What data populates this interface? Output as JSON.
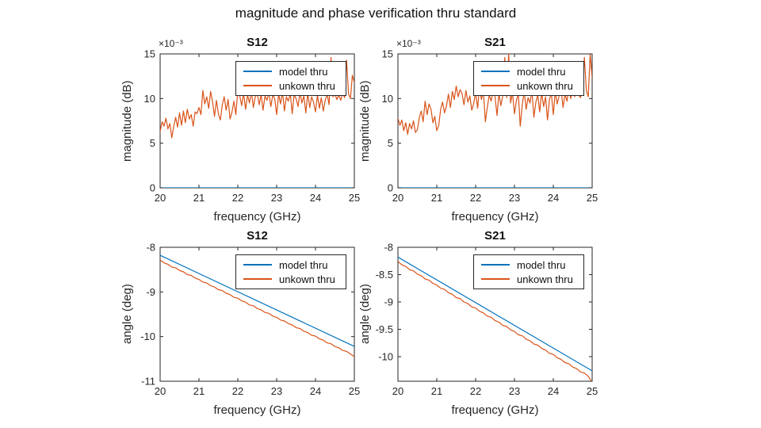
{
  "figure_title": "magnitude and phase verification thru standard",
  "colors": {
    "model": "#0072BD",
    "unknown": "#D95319",
    "axis": "#262626"
  },
  "chart_data": [
    {
      "type": "line",
      "title": "S12",
      "xlabel": "frequency (GHz)",
      "ylabel": "magnitude (dB)",
      "y_multiplier": "×10⁻³",
      "xlim": [
        20,
        25
      ],
      "ylim": [
        0,
        15
      ],
      "xticks": [
        20,
        21,
        22,
        23,
        24,
        25
      ],
      "yticks": [
        0,
        5,
        10,
        15
      ],
      "legend_position": "top-right",
      "series": [
        {
          "name": "model thru",
          "color": "#0072BD",
          "y_const": 0
        },
        {
          "name": "unkown thru",
          "color": "#D95319",
          "y": [
            6.3,
            7.4,
            6.9,
            7.8,
            6.6,
            7.2,
            5.6,
            6.9,
            7.9,
            6.8,
            8.4,
            7.0,
            8.6,
            7.3,
            8.8,
            7.7,
            8.2,
            6.9,
            8.5,
            8.3,
            9.0,
            8.2,
            10.9,
            9.4,
            10.2,
            8.9,
            10.8,
            9.6,
            8.0,
            9.8,
            8.3,
            7.6,
            9.3,
            10.2,
            8.7,
            9.9,
            7.7,
            8.5,
            9.7,
            8.2,
            10.9,
            10.3,
            9.2,
            10.6,
            8.8,
            10.4,
            9.5,
            10.8,
            9.0,
            10.2,
            10.6,
            9.3,
            10.5,
            8.7,
            10.3,
            9.8,
            10.7,
            9.1,
            10.4,
            10.0,
            8.2,
            10.5,
            9.4,
            10.8,
            8.6,
            10.2,
            9.7,
            10.6,
            8.3,
            10.4,
            10.0,
            9.1,
            10.7,
            9.5,
            10.3,
            8.4,
            10.6,
            9.0,
            10.2,
            9.6,
            8.5,
            10.4,
            8.9,
            10.1,
            8.6,
            9.8,
            10.5,
            9.3,
            14.6,
            10.2,
            10.5,
            9.9,
            10.4,
            9.8,
            10.6,
            10.1,
            14.3,
            10.5,
            10.0,
            12.6,
            11.8
          ]
        }
      ]
    },
    {
      "type": "line",
      "title": "S21",
      "xlabel": "frequency (GHz)",
      "ylabel": "magnitude (dB)",
      "y_multiplier": "×10⁻³",
      "xlim": [
        20,
        25
      ],
      "ylim": [
        0,
        15
      ],
      "xticks": [
        20,
        21,
        22,
        23,
        24,
        25
      ],
      "yticks": [
        0,
        5,
        10,
        15
      ],
      "legend_position": "top-right",
      "series": [
        {
          "name": "model thru",
          "color": "#0072BD",
          "y_const": 0
        },
        {
          "name": "unkown thru",
          "color": "#D95319",
          "y": [
            7.8,
            7.0,
            7.6,
            6.4,
            7.3,
            6.0,
            7.2,
            6.6,
            7.5,
            6.2,
            6.5,
            7.9,
            8.6,
            7.4,
            9.7,
            8.2,
            9.4,
            8.8,
            7.3,
            8.0,
            6.4,
            7.0,
            8.8,
            9.6,
            8.4,
            9.2,
            10.5,
            9.0,
            10.8,
            9.9,
            11.4,
            10.2,
            11.0,
            10.6,
            9.3,
            10.9,
            9.6,
            10.3,
            8.7,
            9.4,
            10.7,
            8.9,
            11.3,
            9.9,
            10.8,
            7.4,
            9.0,
            10.4,
            9.7,
            10.9,
            10.2,
            8.1,
            10.6,
            9.2,
            10.3,
            14.6,
            10.1,
            15.0,
            9.5,
            10.7,
            8.3,
            9.8,
            10.5,
            6.9,
            9.3,
            10.8,
            8.8,
            10.1,
            9.5,
            10.9,
            7.9,
            9.6,
            10.4,
            8.5,
            10.7,
            9.1,
            10.2,
            7.6,
            9.9,
            10.6,
            8.2,
            10.8,
            9.4,
            10.3,
            11.0,
            9.0,
            10.5,
            9.7,
            11.2,
            10.0,
            10.9,
            10.2,
            11.8,
            10.4,
            10.1,
            11.0,
            14.6,
            10.9,
            10.2,
            15.0,
            12.3
          ]
        }
      ]
    },
    {
      "type": "line",
      "title": "S12",
      "xlabel": "frequency (GHz)",
      "ylabel": "angle (deg)",
      "y_multiplier": "",
      "xlim": [
        20,
        25
      ],
      "ylim": [
        -11,
        -8
      ],
      "xticks": [
        20,
        21,
        22,
        23,
        24,
        25
      ],
      "yticks": [
        -8,
        -9,
        -10,
        -11
      ],
      "legend_position": "top-right",
      "series": [
        {
          "name": "model thru",
          "color": "#0072BD",
          "y": [
            -8.18,
            -10.22
          ]
        },
        {
          "name": "unkown thru",
          "color": "#D95319",
          "y": [
            -8.28,
            -8.35,
            -8.38,
            -8.44,
            -8.46,
            -8.52,
            -8.55,
            -8.61,
            -8.63,
            -8.69,
            -8.72,
            -8.78,
            -8.8,
            -8.86,
            -8.89,
            -8.95,
            -8.97,
            -9.03,
            -9.06,
            -9.12,
            -9.14,
            -9.2,
            -9.23,
            -9.29,
            -9.31,
            -9.37,
            -9.4,
            -9.46,
            -9.48,
            -9.54,
            -9.57,
            -9.63,
            -9.65,
            -9.71,
            -9.74,
            -9.8,
            -9.82,
            -9.88,
            -9.91,
            -9.97,
            -9.99,
            -10.05,
            -10.08,
            -10.14,
            -10.16,
            -10.22,
            -10.25,
            -10.31,
            -10.33,
            -10.39,
            -10.45
          ]
        }
      ]
    },
    {
      "type": "line",
      "title": "S21",
      "xlabel": "frequency (GHz)",
      "ylabel": "angle (deg)",
      "y_multiplier": "",
      "xlim": [
        20,
        25
      ],
      "ylim": [
        -10.45,
        -8
      ],
      "xticks": [
        20,
        21,
        22,
        23,
        24,
        25
      ],
      "yticks": [
        -8,
        -8.5,
        -9,
        -9.5,
        -10
      ],
      "legend_position": "top-right",
      "series": [
        {
          "name": "model thru",
          "color": "#0072BD",
          "y": [
            -8.18,
            -10.26
          ]
        },
        {
          "name": "unkown thru",
          "color": "#D95319",
          "y": [
            -8.26,
            -8.32,
            -8.35,
            -8.41,
            -8.43,
            -8.49,
            -8.52,
            -8.58,
            -8.6,
            -8.66,
            -8.69,
            -8.75,
            -8.77,
            -8.83,
            -8.86,
            -8.92,
            -8.94,
            -9.0,
            -9.03,
            -9.09,
            -9.11,
            -9.17,
            -9.2,
            -9.26,
            -9.28,
            -9.34,
            -9.37,
            -9.43,
            -9.45,
            -9.51,
            -9.54,
            -9.6,
            -9.62,
            -9.68,
            -9.71,
            -9.77,
            -9.79,
            -9.85,
            -9.88,
            -9.94,
            -9.96,
            -10.02,
            -10.05,
            -10.11,
            -10.13,
            -10.19,
            -10.22,
            -10.28,
            -10.3,
            -10.36,
            -10.47
          ]
        }
      ]
    }
  ]
}
